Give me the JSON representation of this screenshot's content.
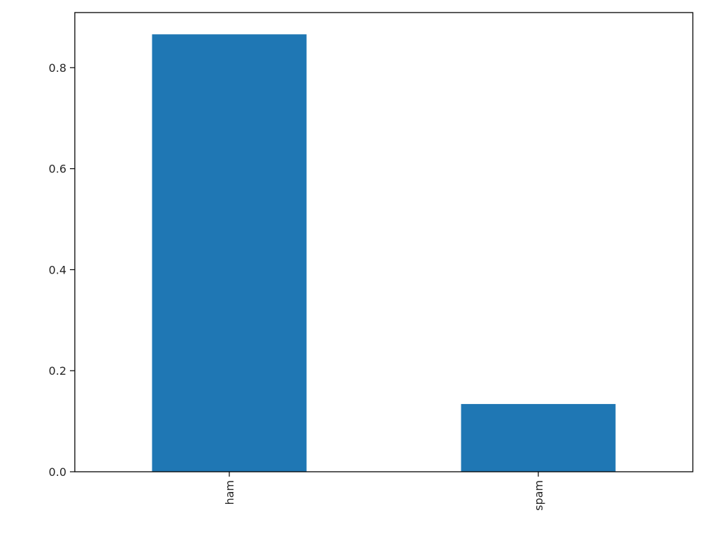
{
  "chart_data": {
    "type": "bar",
    "title": "",
    "xlabel": "",
    "ylabel": "",
    "categories": [
      "ham",
      "spam"
    ],
    "values": [
      0.8659,
      0.1341
    ],
    "ylim": [
      0,
      0.909
    ],
    "yticks": [
      0.0,
      0.2,
      0.4,
      0.6,
      0.8
    ],
    "ytick_labels": [
      "0.0",
      "0.2",
      "0.4",
      "0.6",
      "0.8"
    ],
    "xtick_rotation": 90,
    "grid": false,
    "bar_color": "#1f77b4"
  }
}
